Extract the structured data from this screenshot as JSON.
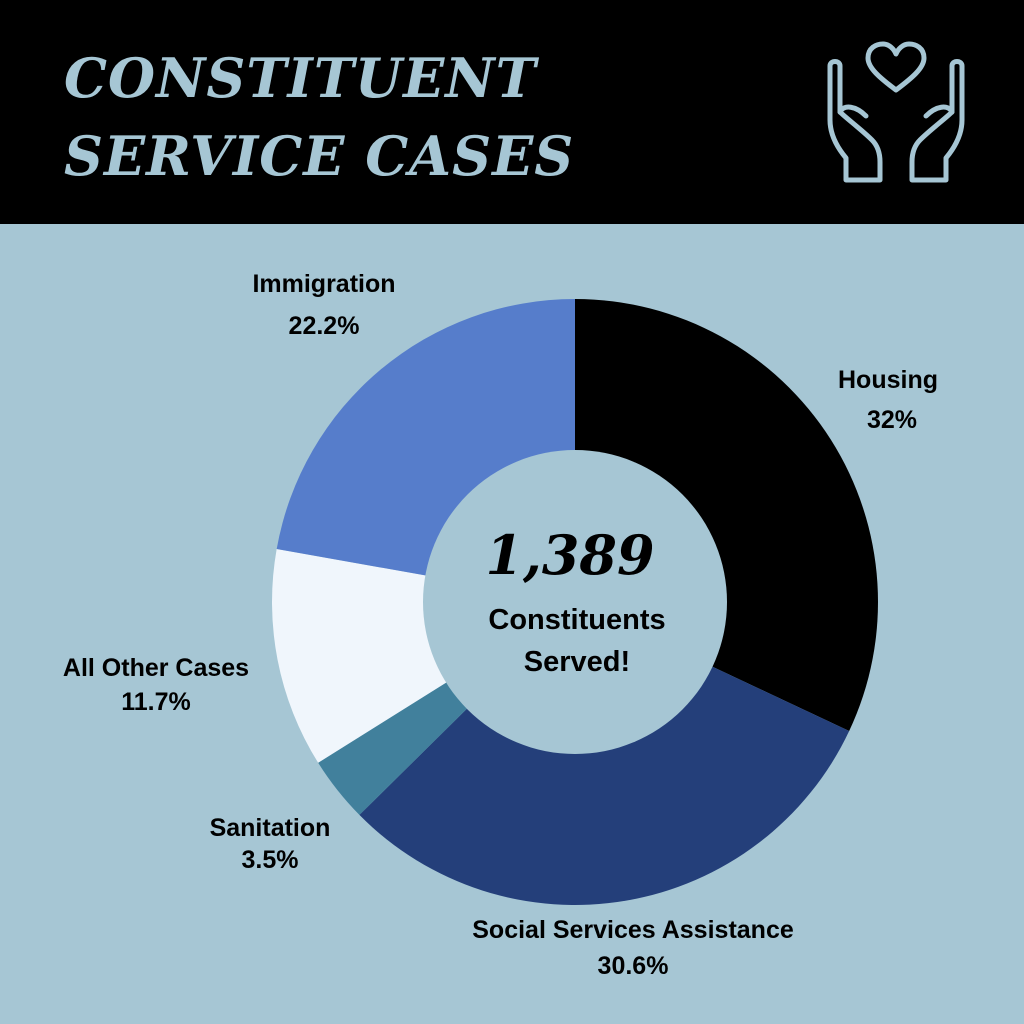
{
  "header": {
    "title_line1": "CONSTITUENT",
    "title_line2": "SERVICE CASES",
    "icon": "hands-heart-icon",
    "background": "#000000",
    "title_color": "#a6c6d4"
  },
  "center": {
    "number": "1,389",
    "line1": "Constituents",
    "line2": "Served!"
  },
  "page_background": "#a6c6d4",
  "chart_data": {
    "type": "pie",
    "title": "CONSTITUENT SERVICE CASES",
    "donut": true,
    "slices": [
      {
        "label": "Housing",
        "value": 32,
        "value_label": "32%",
        "color": "#000000"
      },
      {
        "label": "Social Services Assistance",
        "value": 30.6,
        "value_label": "30.6%",
        "color": "#243f7a"
      },
      {
        "label": "Sanitation",
        "value": 3.5,
        "value_label": "3.5%",
        "color": "#41809c"
      },
      {
        "label": "All Other Cases",
        "value": 11.7,
        "value_label": "11.7%",
        "color": "#f0f6fc"
      },
      {
        "label": "Immigration",
        "value": 22.2,
        "value_label": "22.2%",
        "color": "#567dcb"
      }
    ]
  }
}
